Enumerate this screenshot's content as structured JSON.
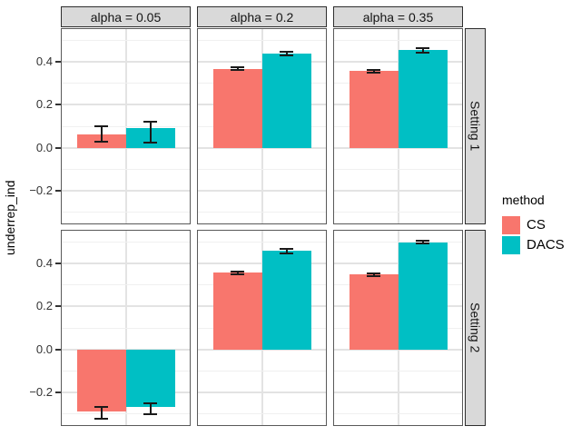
{
  "figure": {
    "y_axis_title": "underrep_ind"
  },
  "chart_data": {
    "type": "bar",
    "title": "",
    "xlabel": "",
    "ylabel": "underrep_ind",
    "ylim": [
      -0.355,
      0.555
    ],
    "yticks": [
      0.4,
      0.2,
      0.0,
      -0.2
    ],
    "ytick_labels": [
      "0.4",
      "0.2",
      "0.0",
      "−0.2"
    ],
    "minor_yticks": [
      0.5,
      0.3,
      0.1,
      -0.1,
      -0.3
    ],
    "grid": "on",
    "legend_position": "right",
    "legend_title": "method",
    "series": [
      {
        "name": "CS",
        "color": "#F8766D"
      },
      {
        "name": "DACS",
        "color": "#00BFC4"
      }
    ],
    "facets": {
      "columns": [
        "alpha = 0.05",
        "alpha = 0.2",
        "alpha = 0.35"
      ],
      "rows": [
        "Setting 1",
        "Setting 2"
      ]
    },
    "panels": [
      {
        "row": "Setting 1",
        "col": "alpha = 0.05",
        "bars": [
          {
            "method": "CS",
            "value": 0.062,
            "err_lo": 0.032,
            "err_hi": 0.103
          },
          {
            "method": "DACS",
            "value": 0.091,
            "err_lo": 0.028,
            "err_hi": 0.124
          }
        ]
      },
      {
        "row": "Setting 1",
        "col": "alpha = 0.2",
        "bars": [
          {
            "method": "CS",
            "value": 0.37,
            "err_lo": 0.364,
            "err_hi": 0.377
          },
          {
            "method": "DACS",
            "value": 0.441,
            "err_lo": 0.431,
            "err_hi": 0.449
          }
        ]
      },
      {
        "row": "Setting 1",
        "col": "alpha = 0.35",
        "bars": [
          {
            "method": "CS",
            "value": 0.36,
            "err_lo": 0.353,
            "err_hi": 0.367
          },
          {
            "method": "DACS",
            "value": 0.456,
            "err_lo": 0.446,
            "err_hi": 0.465
          }
        ]
      },
      {
        "row": "Setting 2",
        "col": "alpha = 0.05",
        "bars": [
          {
            "method": "CS",
            "value": -0.29,
            "err_lo": -0.317,
            "err_hi": -0.262
          },
          {
            "method": "DACS",
            "value": -0.272,
            "err_lo": -0.297,
            "err_hi": -0.247
          }
        ]
      },
      {
        "row": "Setting 2",
        "col": "alpha = 0.2",
        "bars": [
          {
            "method": "CS",
            "value": 0.358,
            "err_lo": 0.352,
            "err_hi": 0.364
          },
          {
            "method": "DACS",
            "value": 0.46,
            "err_lo": 0.45,
            "err_hi": 0.47
          }
        ]
      },
      {
        "row": "Setting 2",
        "col": "alpha = 0.35",
        "bars": [
          {
            "method": "CS",
            "value": 0.35,
            "err_lo": 0.344,
            "err_hi": 0.356
          },
          {
            "method": "DACS",
            "value": 0.5,
            "err_lo": 0.494,
            "err_hi": 0.507
          }
        ]
      }
    ]
  }
}
